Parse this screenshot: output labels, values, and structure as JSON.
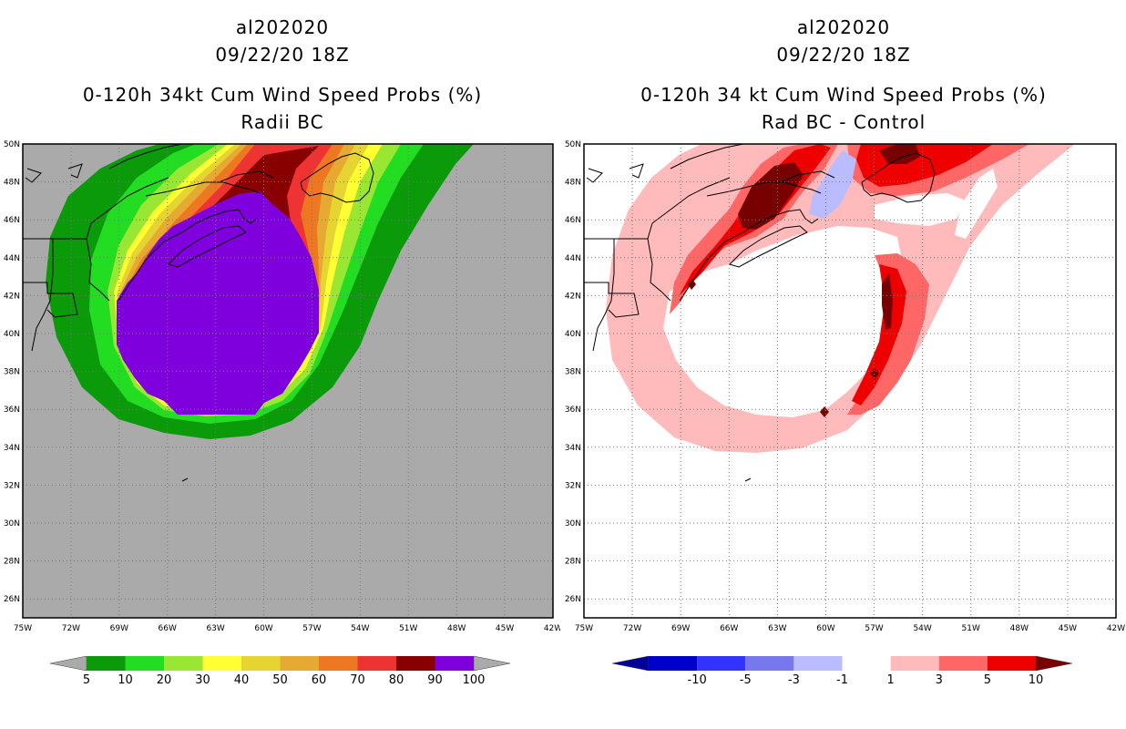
{
  "left_panel": {
    "title_lines": [
      "al202020",
      "09/22/20 18Z",
      "0-120h 34kt Cum Wind Speed Probs (%)",
      "Radii BC"
    ],
    "lat_labels": [
      "50N",
      "48N",
      "46N",
      "44N",
      "42N",
      "40N",
      "38N",
      "36N",
      "34N",
      "32N",
      "30N",
      "28N",
      "26N"
    ],
    "lon_labels": [
      "75W",
      "72W",
      "69W",
      "66W",
      "63W",
      "60W",
      "57W",
      "54W",
      "51W",
      "48W",
      "45W",
      "42W"
    ],
    "colorbar": {
      "colors": [
        "#0a9a0a",
        "#22dd22",
        "#99e633",
        "#ffff33",
        "#e6d433",
        "#e6aa33",
        "#ee7722",
        "#ee3333",
        "#880000",
        "#8000dd"
      ],
      "labels": [
        "5",
        "10",
        "20",
        "30",
        "40",
        "50",
        "60",
        "70",
        "80",
        "90",
        "100"
      ]
    }
  },
  "right_panel": {
    "title_lines": [
      "al202020",
      "09/22/20 18Z",
      "0-120h 34 kt Cum Wind Speed Probs (%)",
      "Rad BC - Control"
    ],
    "lat_labels": [
      "50N",
      "48N",
      "46N",
      "44N",
      "42N",
      "40N",
      "38N",
      "36N",
      "34N",
      "32N",
      "30N",
      "28N",
      "26N"
    ],
    "lon_labels": [
      "75W",
      "72W",
      "69W",
      "66W",
      "63W",
      "60W",
      "57W",
      "54W",
      "51W",
      "48W",
      "45W",
      "42W"
    ],
    "colorbar": {
      "colors": [
        "#0000cc",
        "#3333ff",
        "#7777ee",
        "#bbbbff",
        "#ffffff",
        "#ffbbbb",
        "#ff6666",
        "#ee0000"
      ],
      "left_tip": "#000099",
      "right_tip": "#770000",
      "labels": [
        "-10",
        "-5",
        "-3",
        "-1",
        "1",
        "3",
        "5",
        "10"
      ]
    }
  },
  "colors": {
    "land_gray": "#aaaaaa",
    "coast_line": "#000000",
    "grid_line": "#777777"
  }
}
